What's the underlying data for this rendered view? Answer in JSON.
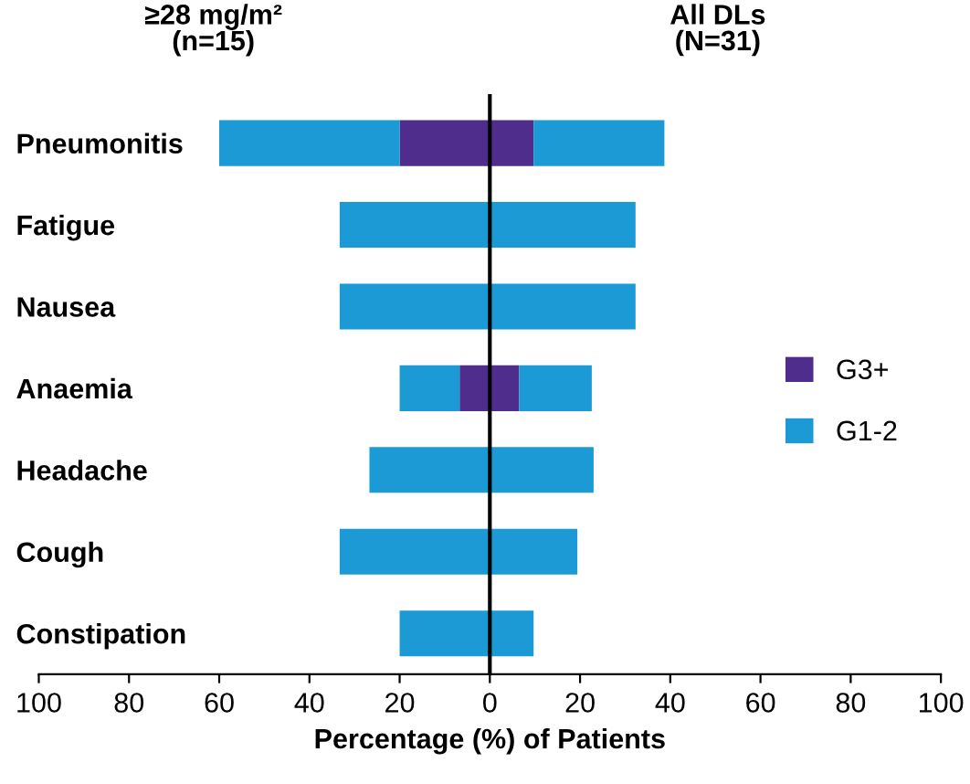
{
  "chart_data": {
    "type": "bar",
    "orientation": "horizontal",
    "stacked": true,
    "categories": [
      "Pneumonitis",
      "Fatigue",
      "Nausea",
      "Anaemia",
      "Headache",
      "Cough",
      "Constipation"
    ],
    "series": [
      {
        "name": "G3+",
        "color": "#4f2d8c",
        "values": [
          -20,
          null,
          null,
          -6.7,
          null,
          null,
          null
        ]
      },
      {
        "name": "G1-2",
        "color": "#1b9ad6",
        "values": [
          -40,
          -33.3,
          -33.3,
          -13.3,
          -26.7,
          -33.3,
          -20
        ]
      },
      {
        "color": "#4f2d8c",
        "values": [
          9.7,
          null,
          null,
          6.5,
          null,
          null,
          null
        ]
      },
      {
        "color": "#1b9ad6",
        "values": [
          29,
          32.3,
          32.3,
          16.1,
          23,
          19.4,
          9.7
        ]
      }
    ],
    "xlim": [
      -100,
      100
    ],
    "xticks": [
      {
        "value": -100,
        "label": "100"
      },
      {
        "value": -80,
        "label": "80"
      },
      {
        "value": -60,
        "label": "60"
      },
      {
        "value": -40,
        "label": "40"
      },
      {
        "value": -20,
        "label": "20"
      },
      0,
      20,
      40,
      60,
      80,
      100
    ],
    "xlabel": "Percentage (%) of Patients",
    "annotations": [
      "≥28 mg/m²\n(n=15)",
      "All DLs\n(N=31)"
    ],
    "ref_lines": [
      {
        "axis": "x",
        "value": 0,
        "color": "#000000"
      }
    ],
    "legend": "right",
    "grid": false
  }
}
